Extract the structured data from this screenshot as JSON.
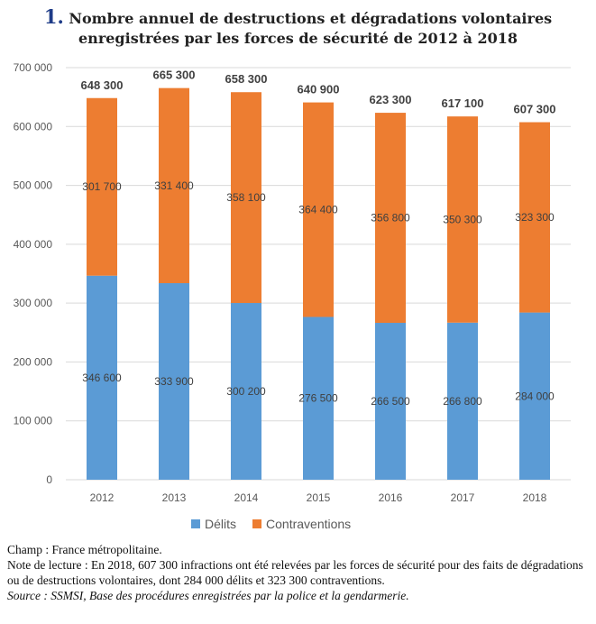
{
  "chart_data": {
    "type": "stacked-bar",
    "title_number": "1.",
    "title_line1": "Nombre annuel de destructions et dégradations volontaires",
    "title_line2": "enregistrées par les forces de sécurité de 2012 à 2018",
    "categories": [
      "2012",
      "2013",
      "2014",
      "2015",
      "2016",
      "2017",
      "2018"
    ],
    "series": [
      {
        "name": "Délits",
        "color": "#5b9bd5",
        "values": [
          346600,
          333900,
          300200,
          276500,
          266500,
          266800,
          284000
        ],
        "labels": [
          "346 600",
          "333 900",
          "300 200",
          "276 500",
          "266 500",
          "266 800",
          "284 000"
        ]
      },
      {
        "name": "Contraventions",
        "color": "#ed7d31",
        "values": [
          301700,
          331400,
          358100,
          364400,
          356800,
          350300,
          323300
        ],
        "labels": [
          "301 700",
          "331 400",
          "358 100",
          "364 400",
          "356 800",
          "350 300",
          "323 300"
        ]
      }
    ],
    "totals": [
      "648 300",
      "665 300",
      "658 300",
      "640 900",
      "623 300",
      "617 100",
      "607 300"
    ],
    "ylim": [
      0,
      700000
    ],
    "yticks": [
      "0",
      "100 000",
      "200 000",
      "300 000",
      "400 000",
      "500 000",
      "600 000",
      "700 000"
    ],
    "grid": true,
    "legend": "bottom"
  },
  "notes": {
    "champ": "Champ : France métropolitaine.",
    "lecture": "Note de lecture : En 2018, 607 300 infractions ont été relevées par les forces de sécurité pour des faits de dégradations ou de destructions volontaires, dont  284 000 délits et 323 300 contraventions.",
    "source": "Source : SSMSI, Base des procédures enregistrées par la police et la gendarmerie."
  }
}
